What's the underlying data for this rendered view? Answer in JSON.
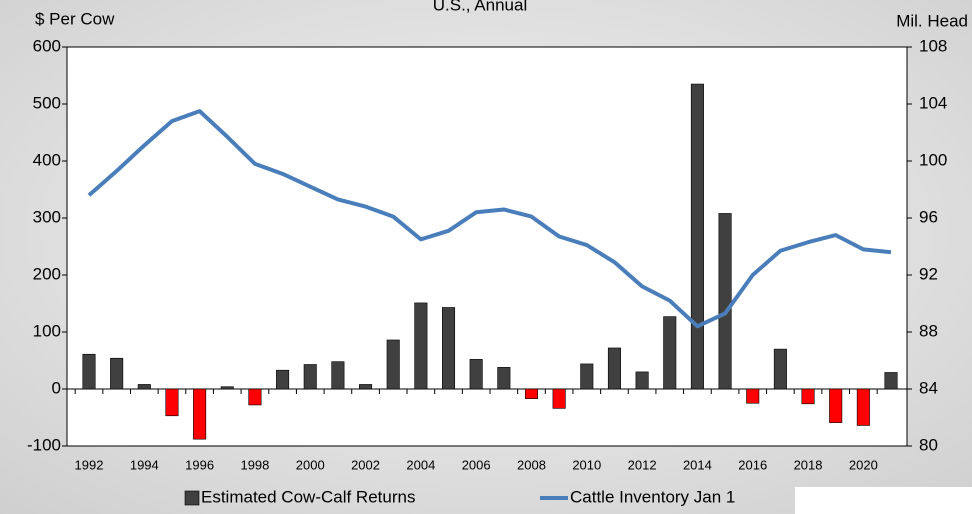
{
  "chart_data": {
    "type": "bar_line",
    "title": "U.S., Annual",
    "y_label": "$ Per Cow",
    "y2_label": "Mil. Head",
    "categories": [
      "1992",
      null,
      "1994",
      null,
      "1996",
      null,
      "1998",
      null,
      "2000",
      null,
      "2002",
      null,
      "2004",
      null,
      "2006",
      null,
      "2008",
      null,
      "2010",
      null,
      "2012",
      null,
      "2014",
      null,
      "2016",
      null,
      "2018",
      null,
      "2020",
      null
    ],
    "series": [
      {
        "name": "Estimated Cow-Calf Returns",
        "type": "bar",
        "color": "#404040",
        "negative_color": "#ff0000",
        "values": [
          61,
          54,
          8,
          -47,
          -88,
          4,
          -28,
          33,
          43,
          48,
          8,
          86,
          151,
          143,
          52,
          38,
          -17,
          -34,
          44,
          72,
          30,
          127,
          535,
          308,
          -25,
          70,
          -26,
          -59,
          -64,
          29
        ]
      },
      {
        "name": "Cattle Inventory Jan 1",
        "type": "line",
        "axis": "y2",
        "color": "#4a7ebb",
        "values": [
          97.6,
          99.3,
          101.1,
          102.8,
          103.5,
          101.7,
          99.8,
          99.1,
          98.2,
          97.3,
          96.8,
          96.1,
          94.5,
          95.1,
          96.4,
          96.6,
          96.1,
          94.7,
          94.1,
          92.9,
          91.2,
          90.2,
          88.4,
          89.3,
          92.0,
          93.7,
          94.3,
          94.8,
          93.8,
          93.6
        ]
      }
    ],
    "ylim": [
      -100,
      600
    ],
    "yticks": [
      -100,
      0,
      100,
      200,
      300,
      400,
      500,
      600
    ],
    "y2lim": [
      80,
      108
    ],
    "y2ticks": [
      80,
      84,
      88,
      92,
      96,
      100,
      104,
      108
    ],
    "legend": "bottom"
  }
}
